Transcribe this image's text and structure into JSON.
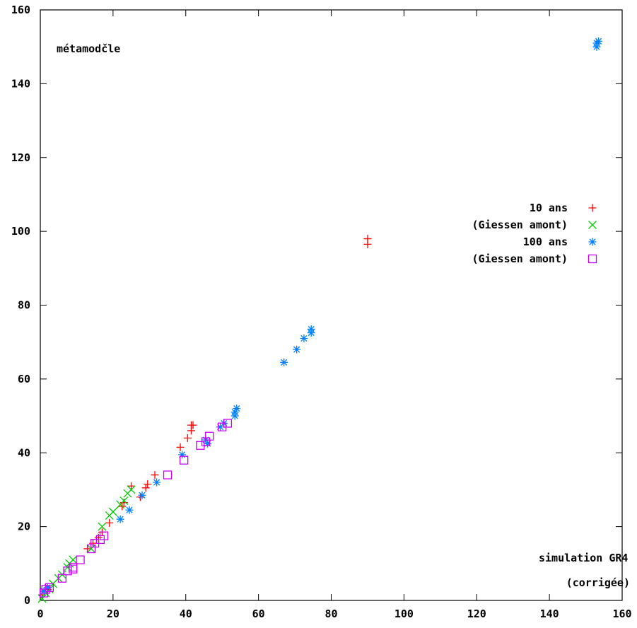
{
  "chart_data": {
    "type": "scatter",
    "title": "métamodčle",
    "xlabel_line1": "simulation GR4",
    "xlabel_line2": "(corrigée)",
    "xlim": [
      0,
      160
    ],
    "ylim": [
      0,
      160
    ],
    "xticks": [
      "0",
      "20",
      "40",
      "60",
      "80",
      "100",
      "120",
      "140",
      "160"
    ],
    "yticks": [
      "0",
      "20",
      "40",
      "60",
      "80",
      "100",
      "120",
      "140",
      "160"
    ],
    "grid": false,
    "legend_position": "right",
    "series": [
      {
        "name": "10 ans",
        "marker": "plus",
        "color": "#ff0000",
        "points": [
          [
            0.5,
            1.5
          ],
          [
            2,
            3
          ],
          [
            13,
            14
          ],
          [
            14.5,
            15.5
          ],
          [
            16,
            17
          ],
          [
            17,
            18.5
          ],
          [
            19,
            21
          ],
          [
            22.5,
            25.5
          ],
          [
            23,
            26.5
          ],
          [
            25,
            31
          ],
          [
            27.5,
            28
          ],
          [
            29,
            30.5
          ],
          [
            29.5,
            31.5
          ],
          [
            31.5,
            34
          ],
          [
            38.5,
            41.5
          ],
          [
            40.5,
            44
          ],
          [
            41.5,
            46
          ],
          [
            41.5,
            47.5
          ],
          [
            42,
            47.5
          ],
          [
            90,
            96.5
          ],
          [
            90,
            98
          ]
        ]
      },
      {
        "name": "(Giessen amont)",
        "marker": "x",
        "color": "#00cc00",
        "points": [
          [
            0.5,
            0.5
          ],
          [
            1.5,
            2
          ],
          [
            2.5,
            3
          ],
          [
            3.5,
            4.5
          ],
          [
            5,
            6
          ],
          [
            6,
            7
          ],
          [
            7.5,
            9
          ],
          [
            8,
            10
          ],
          [
            9,
            11
          ],
          [
            14,
            14
          ],
          [
            17,
            20
          ],
          [
            19,
            23
          ],
          [
            20,
            24
          ],
          [
            22,
            26
          ],
          [
            23,
            27
          ],
          [
            24,
            29
          ],
          [
            25,
            30
          ]
        ]
      },
      {
        "name": "100 ans",
        "marker": "asterisk",
        "color": "#0080ff",
        "points": [
          [
            1,
            2.5
          ],
          [
            2,
            3.5
          ],
          [
            22,
            22
          ],
          [
            24.5,
            24.5
          ],
          [
            28,
            28.5
          ],
          [
            32,
            32
          ],
          [
            39,
            39.5
          ],
          [
            45.5,
            43.5
          ],
          [
            46,
            42.5
          ],
          [
            49.5,
            47
          ],
          [
            50.5,
            48
          ],
          [
            53.5,
            50
          ],
          [
            53.5,
            51
          ],
          [
            54,
            52
          ],
          [
            67,
            64.5
          ],
          [
            70.5,
            68
          ],
          [
            72.5,
            71
          ],
          [
            74.5,
            72.5
          ],
          [
            74.5,
            73.5
          ],
          [
            153,
            150
          ],
          [
            153,
            151
          ],
          [
            153.5,
            151.5
          ]
        ]
      },
      {
        "name": "(Giessen amont)",
        "marker": "square",
        "color": "#cc00ff",
        "points": [
          [
            1,
            2
          ],
          [
            1.5,
            3
          ],
          [
            2.5,
            3.5
          ],
          [
            6,
            6
          ],
          [
            7.5,
            8
          ],
          [
            9,
            8.5
          ],
          [
            9,
            9
          ],
          [
            11,
            11
          ],
          [
            14,
            14
          ],
          [
            15,
            15.5
          ],
          [
            16.5,
            16.5
          ],
          [
            17.5,
            17.5
          ],
          [
            35,
            34
          ],
          [
            39.5,
            38
          ],
          [
            44,
            42
          ],
          [
            45.5,
            43
          ],
          [
            46.5,
            44.5
          ],
          [
            50,
            47
          ],
          [
            51.5,
            48
          ]
        ]
      }
    ]
  }
}
